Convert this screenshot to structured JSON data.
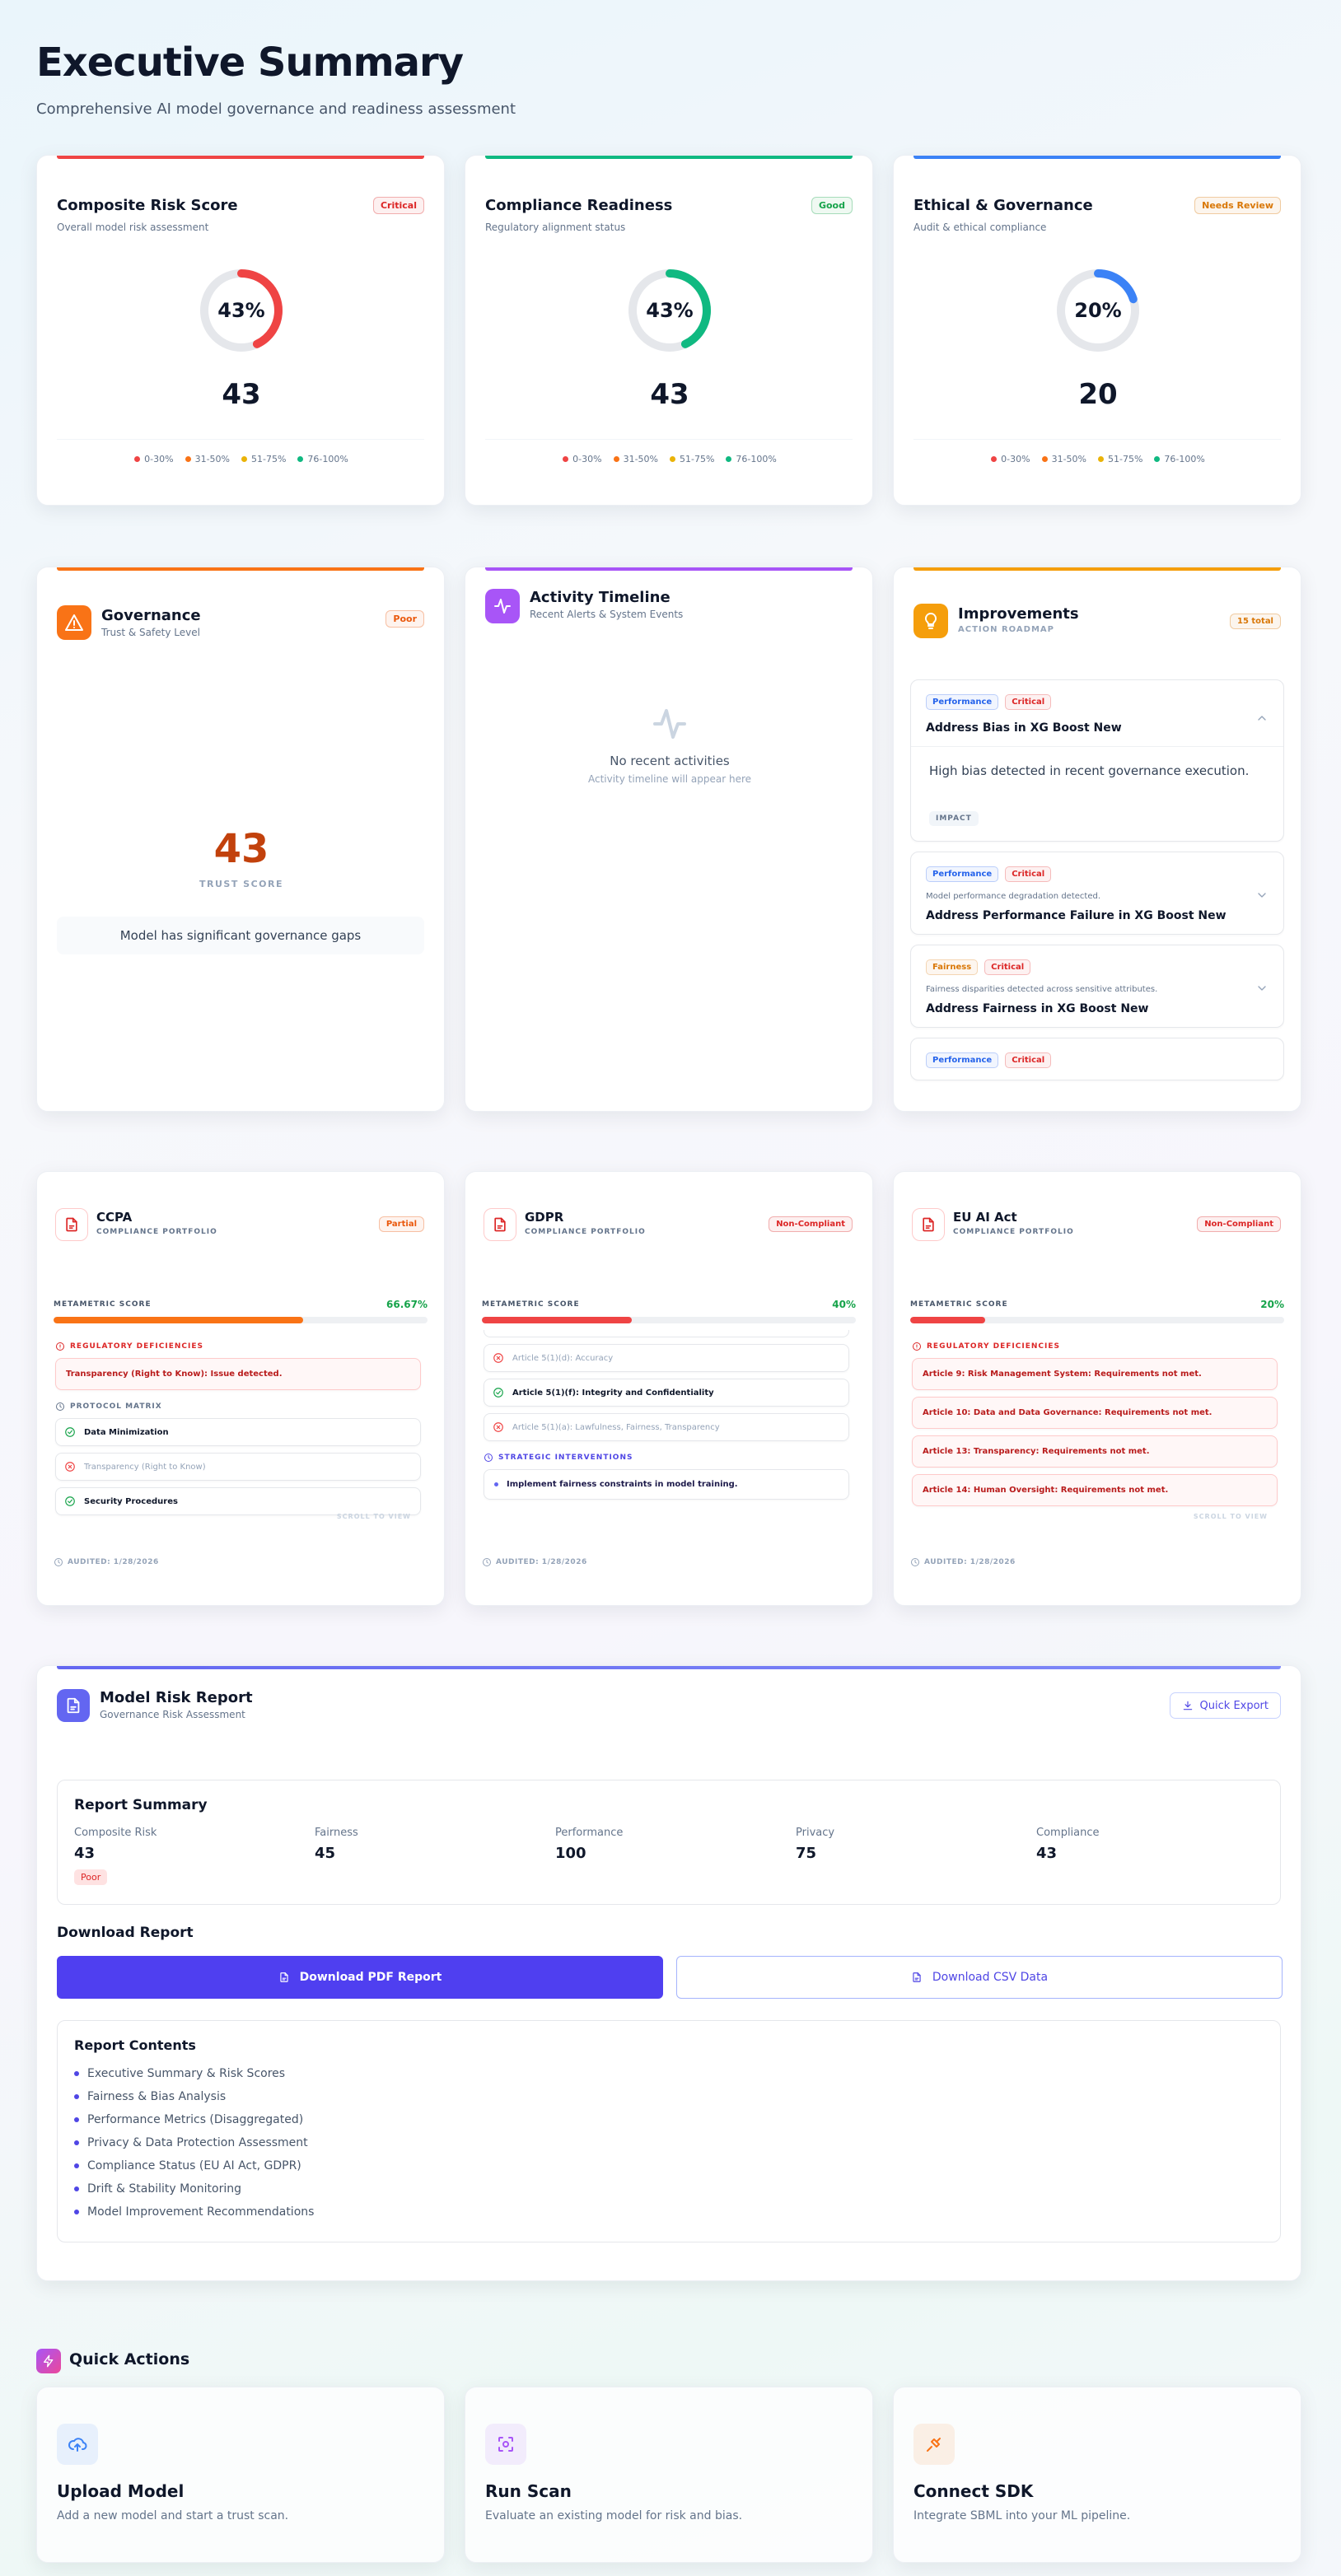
{
  "header": {
    "title": "Executive Summary",
    "subtitle": "Comprehensive AI model governance and readiness assessment"
  },
  "score_legend": [
    {
      "label": "0-30%",
      "color": "#ef4444"
    },
    {
      "label": "31-50%",
      "color": "#f97316"
    },
    {
      "label": "51-75%",
      "color": "#eab308"
    },
    {
      "label": "76-100%",
      "color": "#10b981"
    }
  ],
  "score_cards": [
    {
      "title": "Composite Risk Score",
      "subtitle": "Overall model risk assessment",
      "badge": "Critical",
      "badge_color": "#dc2626",
      "color": "#ef4444",
      "percent_label": "43%",
      "value": 43
    },
    {
      "title": "Compliance Readiness",
      "subtitle": "Regulatory alignment status",
      "badge": "Good",
      "badge_color": "#16a34a",
      "color": "#10b981",
      "percent_label": "43%",
      "value": 43
    },
    {
      "title": "Ethical & Governance",
      "subtitle": "Audit & ethical compliance",
      "badge": "Needs Review",
      "badge_color": "#d97706",
      "color": "#3b82f6",
      "percent_label": "20%",
      "value": 20
    }
  ],
  "governance": {
    "title": "Governance",
    "subtitle": "Trust & Safety Level",
    "badge": "Poor",
    "badge_color": "#ea580c",
    "color": "#f97316",
    "score": 43,
    "score_color": "#c2410c",
    "score_label": "TRUST SCORE",
    "note": "Model has significant governance gaps"
  },
  "activity": {
    "title": "Activity Timeline",
    "subtitle": "Recent Alerts & System Events",
    "color": "#a855f7",
    "empty_title": "No recent activities",
    "empty_subtitle": "Activity timeline will appear here"
  },
  "improvements": {
    "title": "Improvements",
    "subtitle": "ACTION ROADMAP",
    "badge": "15 total",
    "badge_color": "#d97706",
    "color": "#f59e0b",
    "items": [
      {
        "tags": [
          {
            "text": "Performance",
            "color": "#2563eb"
          },
          {
            "text": "Critical",
            "color": "#dc2626"
          }
        ],
        "title": "Address Bias in XG Boost New",
        "detail": "High bias detected in recent governance execution.",
        "detail_tag": "IMPACT"
      },
      {
        "tags": [
          {
            "text": "Performance",
            "color": "#2563eb"
          },
          {
            "text": "Critical",
            "color": "#dc2626"
          }
        ],
        "summary": "Model performance degradation detected.",
        "title": "Address Performance Failure in XG Boost New"
      },
      {
        "tags": [
          {
            "text": "Fairness",
            "color": "#d97706"
          },
          {
            "text": "Critical",
            "color": "#dc2626"
          }
        ],
        "summary": "Fairness disparities detected across sensitive attributes.",
        "title": "Address Fairness in XG Boost New"
      },
      {
        "tags": [
          {
            "text": "Performance",
            "color": "#2563eb"
          },
          {
            "text": "Critical",
            "color": "#dc2626"
          }
        ]
      }
    ]
  },
  "compliance": [
    {
      "name": "CCPA",
      "subtitle": "COMPLIANCE PORTFOLIO",
      "badge": "Partial",
      "badge_color": "#ea580c",
      "score_label": "METAMETRIC SCORE",
      "score_text": "66.67%",
      "score": 66.67,
      "color": "#f97316",
      "sections": [
        {
          "type": "deficiency",
          "heading": "REGULATORY DEFICIENCIES",
          "items": [
            "Transparency (Right to Know): Issue detected."
          ]
        },
        {
          "type": "matrix",
          "heading": "PROTOCOL MATRIX",
          "items": [
            {
              "text": "Data Minimization",
              "passed": true
            },
            {
              "text": "Transparency (Right to Know)",
              "passed": false
            },
            {
              "text": "Security Procedures",
              "passed": true
            }
          ]
        }
      ],
      "scroll_hint": "SCROLL TO VIEW",
      "audited": "AUDITED: 1/28/2026"
    },
    {
      "name": "GDPR",
      "subtitle": "COMPLIANCE PORTFOLIO",
      "badge": "Non-Compliant",
      "badge_color": "#dc2626",
      "score_label": "METAMETRIC SCORE",
      "score_text": "40%",
      "score": 40,
      "color": "#ef4444",
      "sections": [
        {
          "type": "matrix",
          "items": [
            {
              "text": "Article 5(1)(d): Accuracy",
              "passed": false
            },
            {
              "text": "Article 5(1)(f): Integrity and Confidentiality",
              "passed": true
            },
            {
              "text": "Article 5(1)(a): Lawfulness, Fairness, Transparency",
              "passed": false
            }
          ]
        },
        {
          "type": "intervention",
          "heading": "STRATEGIC INTERVENTIONS",
          "items": [
            "Implement fairness constraints in model training."
          ]
        }
      ],
      "audited": "AUDITED: 1/28/2026"
    },
    {
      "name": "EU AI Act",
      "subtitle": "COMPLIANCE PORTFOLIO",
      "badge": "Non-Compliant",
      "badge_color": "#dc2626",
      "score_label": "METAMETRIC SCORE",
      "score_text": "20%",
      "score": 20,
      "color": "#ef4444",
      "sections": [
        {
          "type": "deficiency",
          "heading": "REGULATORY DEFICIENCIES",
          "items": [
            "Article 9: Risk Management System: Requirements not met.",
            "Article 10: Data and Data Governance: Requirements not met.",
            "Article 13: Transparency: Requirements not met.",
            "Article 14: Human Oversight: Requirements not met."
          ]
        }
      ],
      "scroll_hint": "SCROLL TO VIEW",
      "audited": "AUDITED: 1/28/2026"
    }
  ],
  "report": {
    "title": "Model Risk Report",
    "subtitle": "Governance Risk Assessment",
    "export_button": "Quick Export",
    "summary_title": "Report Summary",
    "metrics": [
      {
        "label": "Composite Risk",
        "value": 43,
        "badge": "Poor"
      },
      {
        "label": "Fairness",
        "value": 45
      },
      {
        "label": "Performance",
        "value": 100
      },
      {
        "label": "Privacy",
        "value": 75
      },
      {
        "label": "Compliance",
        "value": 43
      }
    ],
    "download_title": "Download Report",
    "pdf_button": "Download PDF Report",
    "csv_button": "Download CSV Data",
    "contents_title": "Report Contents",
    "contents": [
      "Executive Summary & Risk Scores",
      "Fairness & Bias Analysis",
      "Performance Metrics (Disaggregated)",
      "Privacy & Data Protection Assessment",
      "Compliance Status (EU AI Act, GDPR)",
      "Drift & Stability Monitoring",
      "Model Improvement Recommendations"
    ]
  },
  "quick_actions": {
    "title": "Quick Actions",
    "items": [
      {
        "title": "Upload Model",
        "description": "Add a new model and start a trust scan.",
        "color": "#3b82f6"
      },
      {
        "title": "Run Scan",
        "description": "Evaluate an existing model for risk and bias.",
        "color": "#a855f7"
      },
      {
        "title": "Connect SDK",
        "description": "Integrate SBML into your ML pipeline.",
        "color": "#f97316"
      }
    ]
  }
}
